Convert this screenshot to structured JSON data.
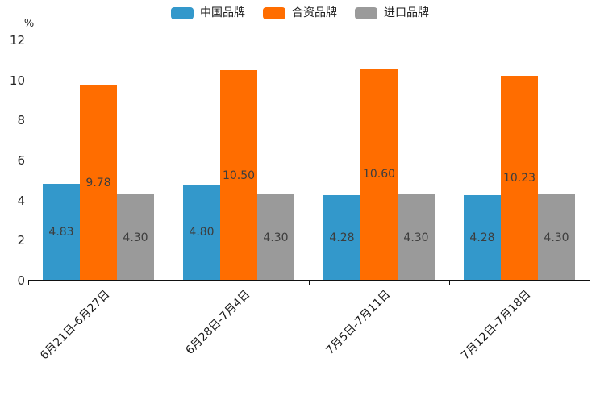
{
  "chart_data": {
    "type": "bar",
    "title": "",
    "xlabel": "",
    "ylabel": "%",
    "ylim": [
      0,
      12
    ],
    "y_tick_step": 2,
    "grid": false,
    "legend_position": "top-center",
    "value_label_decimals": 2,
    "categories": [
      "6月21日-6月27日",
      "6月28日-7月4日",
      "7月5日-7月11日",
      "7月12日-7月18日"
    ],
    "series": [
      {
        "name": "中国品牌",
        "color": "#3398CB",
        "values": [
          4.83,
          4.8,
          4.28,
          4.28
        ]
      },
      {
        "name": "合资品牌",
        "color": "#FF6D00",
        "values": [
          9.78,
          10.5,
          10.6,
          10.23
        ]
      },
      {
        "name": "进口品牌",
        "color": "#9A9A9A",
        "values": [
          4.3,
          4.3,
          4.3,
          4.3
        ]
      }
    ]
  },
  "colors": {
    "axis": "#111111",
    "tick_text": "#262626",
    "value_label_text": "#3d3d3d"
  }
}
